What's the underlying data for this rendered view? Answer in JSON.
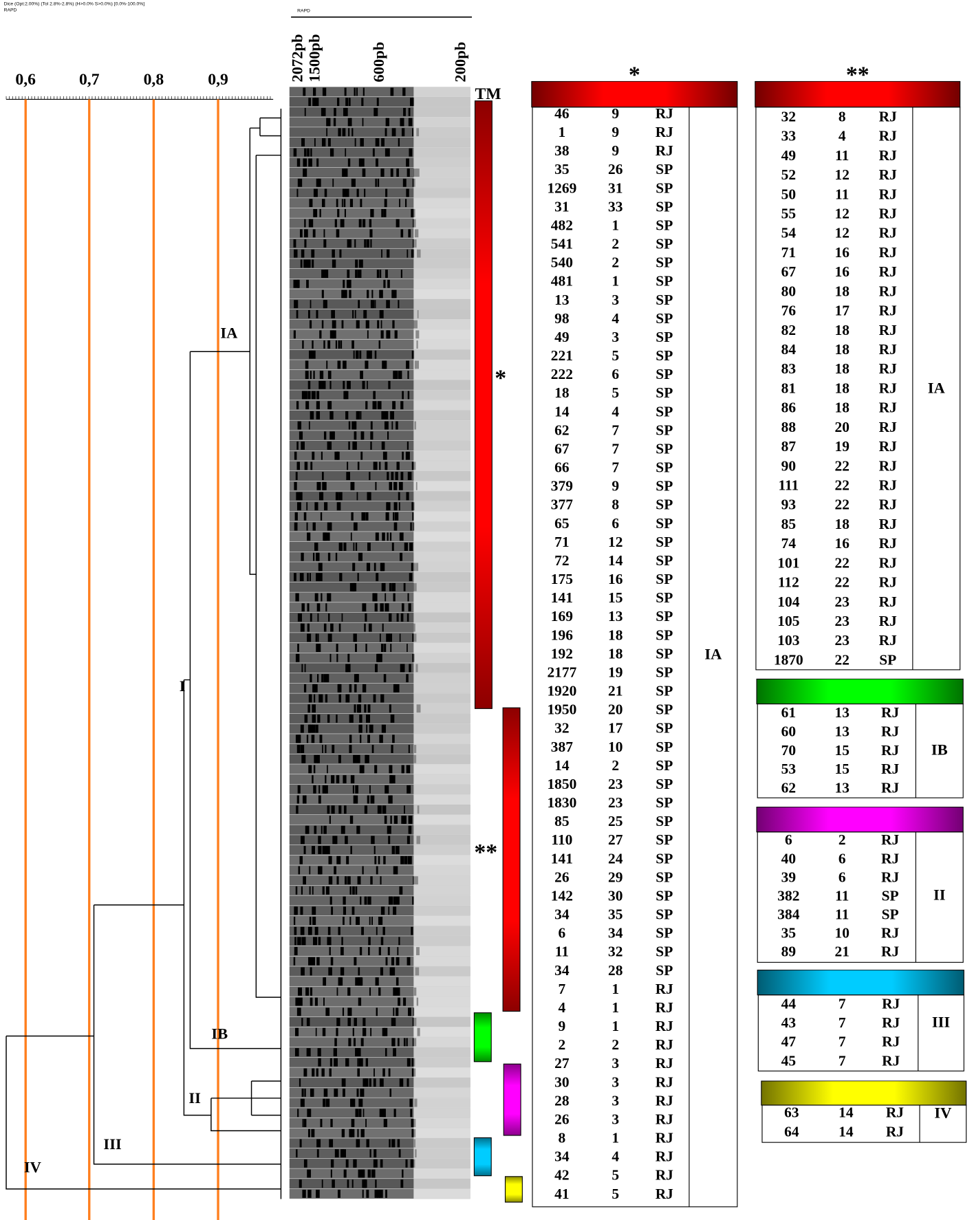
{
  "header": {
    "info": "Dice (Opt:2.00%) (Tol 2.8%-2.8%) (H>0.0% S>0.0%) [0.0%-100.0%]",
    "title": "RAPD"
  },
  "scale": {
    "labels": [
      "0,6",
      "0,7",
      "0,8",
      "0,9"
    ]
  },
  "dendrogram": {
    "groups": [
      "IA",
      "I",
      "IB",
      "II",
      "III",
      "IV"
    ]
  },
  "gel": {
    "title": "RAPD",
    "lanes": [
      "2072pb",
      "1500pb",
      "600pb",
      "200pb"
    ],
    "marker": "TM",
    "clusters": [
      "*",
      "**"
    ]
  },
  "tables": [
    {
      "header": "*",
      "color": "#ff0000",
      "group": "IA",
      "rows": [
        [
          "46",
          "9",
          "RJ"
        ],
        [
          "1",
          "9",
          "RJ"
        ],
        [
          "38",
          "9",
          "RJ"
        ],
        [
          "35",
          "26",
          "SP"
        ],
        [
          "1269",
          "31",
          "SP"
        ],
        [
          "31",
          "33",
          "SP"
        ],
        [
          "482",
          "1",
          "SP"
        ],
        [
          "541",
          "2",
          "SP"
        ],
        [
          "540",
          "2",
          "SP"
        ],
        [
          "481",
          "1",
          "SP"
        ],
        [
          "13",
          "3",
          "SP"
        ],
        [
          "98",
          "4",
          "SP"
        ],
        [
          "49",
          "3",
          "SP"
        ],
        [
          "221",
          "5",
          "SP"
        ],
        [
          "222",
          "6",
          "SP"
        ],
        [
          "18",
          "5",
          "SP"
        ],
        [
          "14",
          "4",
          "SP"
        ],
        [
          "62",
          "7",
          "SP"
        ],
        [
          "67",
          "7",
          "SP"
        ],
        [
          "66",
          "7",
          "SP"
        ],
        [
          "379",
          "9",
          "SP"
        ],
        [
          "377",
          "8",
          "SP"
        ],
        [
          "65",
          "6",
          "SP"
        ],
        [
          "71",
          "12",
          "SP"
        ],
        [
          "72",
          "14",
          "SP"
        ],
        [
          "175",
          "16",
          "SP"
        ],
        [
          "141",
          "15",
          "SP"
        ],
        [
          "169",
          "13",
          "SP"
        ],
        [
          "196",
          "18",
          "SP"
        ],
        [
          "192",
          "18",
          "SP"
        ],
        [
          "2177",
          "19",
          "SP"
        ],
        [
          "1920",
          "21",
          "SP"
        ],
        [
          "1950",
          "20",
          "SP"
        ],
        [
          "32",
          "17",
          "SP"
        ],
        [
          "387",
          "10",
          "SP"
        ],
        [
          "14",
          "2",
          "SP"
        ],
        [
          "1850",
          "23",
          "SP"
        ],
        [
          "1830",
          "23",
          "SP"
        ],
        [
          "85",
          "25",
          "SP"
        ],
        [
          "110",
          "27",
          "SP"
        ],
        [
          "141",
          "24",
          "SP"
        ],
        [
          "26",
          "29",
          "SP"
        ],
        [
          "142",
          "30",
          "SP"
        ],
        [
          "34",
          "35",
          "SP"
        ],
        [
          "6",
          "34",
          "SP"
        ],
        [
          "11",
          "32",
          "SP"
        ],
        [
          "34",
          "28",
          "SP"
        ],
        [
          "7",
          "1",
          "RJ"
        ],
        [
          "4",
          "1",
          "RJ"
        ],
        [
          "9",
          "1",
          "RJ"
        ],
        [
          "2",
          "2",
          "RJ"
        ],
        [
          "27",
          "3",
          "RJ"
        ],
        [
          "30",
          "3",
          "RJ"
        ],
        [
          "28",
          "3",
          "RJ"
        ],
        [
          "26",
          "3",
          "RJ"
        ],
        [
          "8",
          "1",
          "RJ"
        ],
        [
          "34",
          "4",
          "RJ"
        ],
        [
          "42",
          "5",
          "RJ"
        ],
        [
          "41",
          "5",
          "RJ"
        ]
      ]
    },
    {
      "header": "**",
      "color": "#ff0000",
      "group": "IA",
      "rows": [
        [
          "32",
          "8",
          "RJ"
        ],
        [
          "33",
          "4",
          "RJ"
        ],
        [
          "49",
          "11",
          "RJ"
        ],
        [
          "52",
          "12",
          "RJ"
        ],
        [
          "50",
          "11",
          "RJ"
        ],
        [
          "55",
          "12",
          "RJ"
        ],
        [
          "54",
          "12",
          "RJ"
        ],
        [
          "71",
          "16",
          "RJ"
        ],
        [
          "67",
          "16",
          "RJ"
        ],
        [
          "80",
          "18",
          "RJ"
        ],
        [
          "76",
          "17",
          "RJ"
        ],
        [
          "82",
          "18",
          "RJ"
        ],
        [
          "84",
          "18",
          "RJ"
        ],
        [
          "83",
          "18",
          "RJ"
        ],
        [
          "81",
          "18",
          "RJ"
        ],
        [
          "86",
          "18",
          "RJ"
        ],
        [
          "88",
          "20",
          "RJ"
        ],
        [
          "87",
          "19",
          "RJ"
        ],
        [
          "90",
          "22",
          "RJ"
        ],
        [
          "111",
          "22",
          "RJ"
        ],
        [
          "93",
          "22",
          "RJ"
        ],
        [
          "85",
          "18",
          "RJ"
        ],
        [
          "74",
          "16",
          "RJ"
        ],
        [
          "101",
          "22",
          "RJ"
        ],
        [
          "112",
          "22",
          "RJ"
        ],
        [
          "104",
          "23",
          "RJ"
        ],
        [
          "105",
          "23",
          "RJ"
        ],
        [
          "103",
          "23",
          "RJ"
        ],
        [
          "1870",
          "22",
          "SP"
        ]
      ]
    },
    {
      "color": "#00ff00",
      "group": "IB",
      "rows": [
        [
          "61",
          "13",
          "RJ"
        ],
        [
          "60",
          "13",
          "RJ"
        ],
        [
          "70",
          "15",
          "RJ"
        ],
        [
          "53",
          "15",
          "RJ"
        ],
        [
          "62",
          "13",
          "RJ"
        ]
      ]
    },
    {
      "color": "#ff00ff",
      "group": "II",
      "rows": [
        [
          "6",
          "2",
          "RJ"
        ],
        [
          "40",
          "6",
          "RJ"
        ],
        [
          "39",
          "6",
          "RJ"
        ],
        [
          "382",
          "11",
          "SP"
        ],
        [
          "384",
          "11",
          "SP"
        ],
        [
          "35",
          "10",
          "RJ"
        ],
        [
          "89",
          "21",
          "RJ"
        ]
      ]
    },
    {
      "color": "#00ccff",
      "group": "III",
      "rows": [
        [
          "44",
          "7",
          "RJ"
        ],
        [
          "43",
          "7",
          "RJ"
        ],
        [
          "47",
          "7",
          "RJ"
        ],
        [
          "45",
          "7",
          "RJ"
        ]
      ]
    },
    {
      "color": "#ffff00",
      "group": "IV",
      "rows": [
        [
          "63",
          "14",
          "RJ"
        ],
        [
          "64",
          "14",
          "RJ"
        ]
      ]
    }
  ]
}
